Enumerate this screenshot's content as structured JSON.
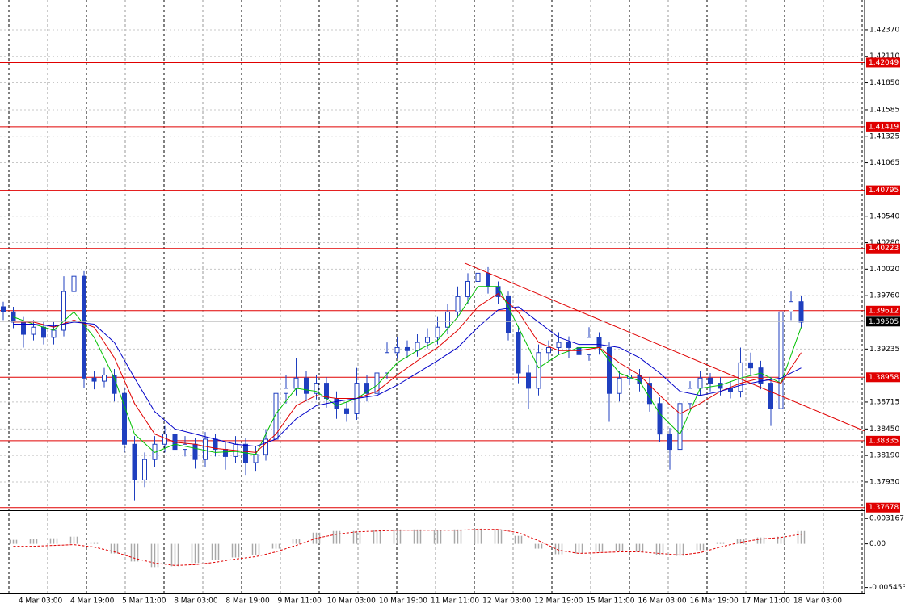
{
  "chart_data": {
    "type": "candlestick",
    "ylim": [
      1.37652,
      1.42663
    ],
    "yticks": [
      {
        "value": 1.4237,
        "label": "1.42370"
      },
      {
        "value": 1.4211,
        "label": "1.42110"
      },
      {
        "value": 1.4185,
        "label": "1.41850"
      },
      1.41585,
      1.41325,
      1.41065,
      {
        "value": 1.4054,
        "label": "1.40540"
      },
      {
        "value": 1.4028,
        "label": "1.40280"
      },
      {
        "value": 1.4002,
        "label": "1.40020"
      },
      {
        "value": 1.3976,
        "label": "1.39760"
      },
      1.39235,
      1.38715,
      {
        "value": 1.3845,
        "label": "1.38450"
      },
      {
        "value": 1.3819,
        "label": "1.38190"
      },
      {
        "value": 1.3793,
        "label": "1.37930"
      }
    ],
    "grid": true,
    "xticks": [
      "4 Mar 03:00",
      "4 Mar 19:00",
      "5 Mar 11:00",
      "8 Mar 03:00",
      "8 Mar 19:00",
      "9 Mar 11:00",
      "10 Mar 03:00",
      "10 Mar 19:00",
      "11 Mar 11:00",
      "12 Mar 03:00",
      "12 Mar 19:00",
      "15 Mar 11:00",
      "16 Mar 03:00",
      "16 Mar 19:00",
      "17 Mar 11:00",
      "18 Mar 03:00"
    ],
    "color": "#1f3fbf",
    "ohlc": [
      [
        1.3965,
        1.397,
        1.3952,
        1.396
      ],
      [
        1.396,
        1.3965,
        1.3944,
        1.395
      ],
      [
        1.395,
        1.3955,
        1.3925,
        1.3938
      ],
      [
        1.3938,
        1.3952,
        1.3932,
        1.3945
      ],
      [
        1.3945,
        1.395,
        1.3928,
        1.3935
      ],
      [
        1.3935,
        1.395,
        1.3928,
        1.3942
      ],
      [
        1.3942,
        1.3995,
        1.3936,
        1.398
      ],
      [
        1.398,
        1.4015,
        1.397,
        1.3995
      ],
      [
        1.3995,
        1.4,
        1.3885,
        1.3895
      ],
      [
        1.3895,
        1.3902,
        1.3884,
        1.3892
      ],
      [
        1.3892,
        1.3905,
        1.3886,
        1.3898
      ],
      [
        1.3898,
        1.3904,
        1.3872,
        1.388
      ],
      [
        1.388,
        1.3886,
        1.3822,
        1.383
      ],
      [
        1.383,
        1.3838,
        1.3775,
        1.3795
      ],
      [
        1.3795,
        1.3822,
        1.3788,
        1.3815
      ],
      [
        1.3815,
        1.3838,
        1.3808,
        1.383
      ],
      [
        1.383,
        1.3848,
        1.3822,
        1.384
      ],
      [
        1.384,
        1.3846,
        1.3818,
        1.3825
      ],
      [
        1.3825,
        1.3838,
        1.3818,
        1.383
      ],
      [
        1.383,
        1.3836,
        1.3806,
        1.3815
      ],
      [
        1.3815,
        1.3842,
        1.3808,
        1.3835
      ],
      [
        1.3835,
        1.384,
        1.3818,
        1.3825
      ],
      [
        1.3825,
        1.3832,
        1.3805,
        1.3818
      ],
      [
        1.3818,
        1.3838,
        1.3812,
        1.383
      ],
      [
        1.383,
        1.3836,
        1.38,
        1.3812
      ],
      [
        1.3812,
        1.3828,
        1.3804,
        1.382
      ],
      [
        1.382,
        1.3845,
        1.3814,
        1.3835
      ],
      [
        1.3835,
        1.3895,
        1.3828,
        1.388
      ],
      [
        1.388,
        1.3898,
        1.387,
        1.3885
      ],
      [
        1.3885,
        1.3915,
        1.3878,
        1.3895
      ],
      [
        1.3895,
        1.3902,
        1.3872,
        1.388
      ],
      [
        1.388,
        1.3898,
        1.3874,
        1.389
      ],
      [
        1.389,
        1.3896,
        1.3866,
        1.3875
      ],
      [
        1.3875,
        1.3882,
        1.3855,
        1.3865
      ],
      [
        1.3865,
        1.3872,
        1.3852,
        1.386
      ],
      [
        1.386,
        1.3905,
        1.3854,
        1.389
      ],
      [
        1.389,
        1.3898,
        1.3872,
        1.388
      ],
      [
        1.388,
        1.3912,
        1.3874,
        1.39
      ],
      [
        1.39,
        1.393,
        1.3894,
        1.392
      ],
      [
        1.392,
        1.3935,
        1.3914,
        1.3925
      ],
      [
        1.3925,
        1.3932,
        1.3915,
        1.3922
      ],
      [
        1.3922,
        1.3938,
        1.3916,
        1.393
      ],
      [
        1.393,
        1.3944,
        1.3924,
        1.3935
      ],
      [
        1.3935,
        1.3955,
        1.3928,
        1.3945
      ],
      [
        1.3945,
        1.3968,
        1.3938,
        1.396
      ],
      [
        1.396,
        1.3985,
        1.3954,
        1.3975
      ],
      [
        1.3975,
        1.3998,
        1.3968,
        1.399
      ],
      [
        1.399,
        1.4005,
        1.3982,
        1.3998
      ],
      [
        1.3998,
        1.4004,
        1.3978,
        1.3985
      ],
      [
        1.3985,
        1.399,
        1.3968,
        1.3975
      ],
      [
        1.3975,
        1.398,
        1.3932,
        1.394
      ],
      [
        1.394,
        1.3946,
        1.389,
        1.39
      ],
      [
        1.39,
        1.3908,
        1.3865,
        1.3885
      ],
      [
        1.3885,
        1.3928,
        1.3878,
        1.392
      ],
      [
        1.392,
        1.3932,
        1.3912,
        1.3925
      ],
      [
        1.3925,
        1.394,
        1.3918,
        1.393
      ],
      [
        1.393,
        1.3936,
        1.3915,
        1.3925
      ],
      [
        1.3925,
        1.393,
        1.3905,
        1.3918
      ],
      [
        1.3918,
        1.3945,
        1.3912,
        1.3935
      ],
      [
        1.3935,
        1.394,
        1.3918,
        1.3925
      ],
      [
        1.3925,
        1.393,
        1.3852,
        1.388
      ],
      [
        1.388,
        1.3902,
        1.3872,
        1.3895
      ],
      [
        1.3895,
        1.3905,
        1.3888,
        1.3898
      ],
      [
        1.3898,
        1.3904,
        1.3882,
        1.389
      ],
      [
        1.389,
        1.3896,
        1.3862,
        1.387
      ],
      [
        1.387,
        1.3876,
        1.3832,
        1.384
      ],
      [
        1.384,
        1.3846,
        1.3805,
        1.3825
      ],
      [
        1.3825,
        1.3878,
        1.3818,
        1.387
      ],
      [
        1.387,
        1.3892,
        1.3864,
        1.3885
      ],
      [
        1.3885,
        1.3902,
        1.3878,
        1.3895
      ],
      [
        1.3895,
        1.39,
        1.3882,
        1.389
      ],
      [
        1.389,
        1.3896,
        1.3878,
        1.3885
      ],
      [
        1.3885,
        1.3892,
        1.3875,
        1.3882
      ],
      [
        1.3882,
        1.3925,
        1.3876,
        1.391
      ],
      [
        1.391,
        1.392,
        1.3898,
        1.3905
      ],
      [
        1.3905,
        1.3912,
        1.3884,
        1.389
      ],
      [
        1.389,
        1.3896,
        1.3848,
        1.3865
      ],
      [
        1.3865,
        1.3968,
        1.3858,
        1.396
      ],
      [
        1.396,
        1.398,
        1.3952,
        1.397
      ],
      [
        1.397,
        1.3976,
        1.3944,
        1.395
      ]
    ],
    "moving_averages": [
      {
        "color": "#00c000",
        "values": [
          1.3955,
          1.3948,
          1.3942,
          1.396,
          1.3935,
          1.3895,
          1.384,
          1.3822,
          1.383,
          1.3826,
          1.3822,
          1.3823,
          1.382,
          1.386,
          1.3885,
          1.3882,
          1.3868,
          1.3875,
          1.3888,
          1.391,
          1.3922,
          1.3932,
          1.3955,
          1.3985,
          1.3985,
          1.3945,
          1.3905,
          1.3918,
          1.3925,
          1.3925,
          1.39,
          1.3892,
          1.386,
          1.384,
          1.3885,
          1.3888,
          1.3895,
          1.39,
          1.389,
          1.3945
        ]
      },
      {
        "color": "#e00000",
        "values": [
          1.395,
          1.395,
          1.3945,
          1.3952,
          1.3945,
          1.3915,
          1.387,
          1.384,
          1.3832,
          1.383,
          1.3826,
          1.3824,
          1.3822,
          1.384,
          1.3868,
          1.3878,
          1.3875,
          1.3875,
          1.3882,
          1.3898,
          1.3912,
          1.3925,
          1.3942,
          1.3965,
          1.3978,
          1.396,
          1.393,
          1.3922,
          1.3922,
          1.3925,
          1.391,
          1.3898,
          1.3878,
          1.386,
          1.387,
          1.3882,
          1.389,
          1.3895,
          1.389,
          1.392
        ]
      },
      {
        "color": "#0000c8",
        "values": [
          1.3948,
          1.3948,
          1.3946,
          1.395,
          1.3948,
          1.393,
          1.3895,
          1.3862,
          1.3845,
          1.384,
          1.3835,
          1.383,
          1.3828,
          1.3835,
          1.3855,
          1.3868,
          1.3872,
          1.3875,
          1.3878,
          1.3888,
          1.39,
          1.3912,
          1.3925,
          1.3945,
          1.3962,
          1.3965,
          1.395,
          1.3935,
          1.3928,
          1.3928,
          1.3925,
          1.3915,
          1.39,
          1.3882,
          1.3878,
          1.3882,
          1.3888,
          1.3892,
          1.3895,
          1.3905
        ]
      }
    ],
    "levels": {
      "color": "#e00000",
      "lines": [
        {
          "value": 1.42049,
          "label": "1.42049"
        },
        {
          "value": 1.41419,
          "label": "1.41419"
        },
        {
          "value": 1.40795,
          "label": "1.40795"
        },
        {
          "value": 1.40223,
          "label": "1.40223"
        },
        {
          "value": 1.39612,
          "label": "1.39612"
        },
        {
          "value": 1.38958,
          "label": "1.38958"
        },
        {
          "value": 1.38335,
          "label": "1.38335"
        },
        {
          "value": 1.37678,
          "label": "1.37678"
        }
      ]
    },
    "current_price": {
      "value": 1.39505,
      "label": "1.39505"
    },
    "trendline": {
      "color": "#e00000",
      "values": [
        1.4008,
        1.3843
      ]
    },
    "oscillator": {
      "type": "histogram",
      "ylim": [
        -0.0062,
        0.004
      ],
      "yticks": [
        0.003167,
        {
          "value": 0,
          "label": "0.00"
        },
        -0.005453
      ],
      "histogram": {
        "color": "#a8a8a8",
        "values": [
          0.0005,
          0.0006,
          0.0007,
          0.0009,
          0.0002,
          -0.0012,
          -0.0022,
          -0.0029,
          -0.0028,
          -0.0024,
          -0.002,
          -0.0017,
          -0.0014,
          -0.0006,
          0.0006,
          0.0014,
          0.0016,
          0.0016,
          0.0017,
          0.0018,
          0.0018,
          0.0017,
          0.0018,
          0.0019,
          0.0018,
          0.001,
          -0.0006,
          -0.0013,
          -0.0012,
          -0.001,
          -0.0009,
          -0.001,
          -0.0014,
          -0.0015,
          -0.0008,
          0.0002,
          0.0006,
          0.0008,
          0.0009,
          0.0016
        ]
      },
      "signal": {
        "color": "#e00000",
        "values": [
          -0.0003,
          -0.0003,
          -0.0002,
          -0.0001,
          -0.0004,
          -0.001,
          -0.0018,
          -0.0024,
          -0.0027,
          -0.0026,
          -0.0023,
          -0.0019,
          -0.0016,
          -0.001,
          -0.0002,
          0.0007,
          0.0012,
          0.0015,
          0.0016,
          0.0017,
          0.0017,
          0.0017,
          0.0017,
          0.0018,
          0.0018,
          0.0014,
          0.0004,
          -0.0008,
          -0.0012,
          -0.0011,
          -0.001,
          -0.001,
          -0.0012,
          -0.0014,
          -0.0011,
          -0.0004,
          0.0002,
          0.0006,
          0.0008,
          0.0012
        ]
      }
    }
  }
}
